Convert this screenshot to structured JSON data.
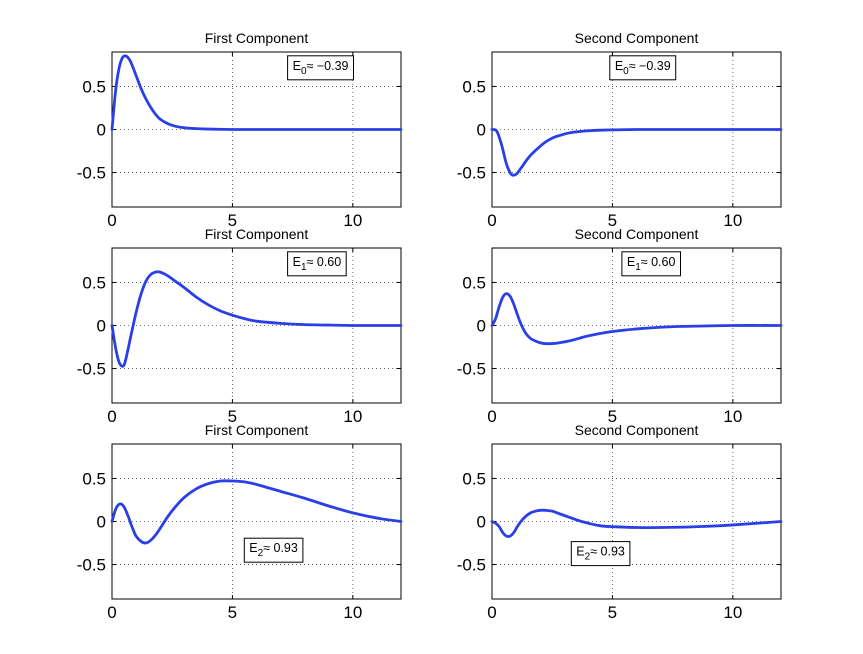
{
  "chart_data": [
    {
      "type": "line",
      "title": "First Component",
      "xlim": [
        0,
        12
      ],
      "ylim": [
        -0.9,
        0.9
      ],
      "xticks": [
        0,
        5,
        10
      ],
      "xtick_labels": [
        "0",
        "5",
        "10"
      ],
      "yticks": [
        0.5,
        0,
        -0.5
      ],
      "ytick_labels": [
        "0.5",
        "0",
        "-0.5"
      ],
      "grid": true,
      "annotation": {
        "base": "E",
        "sub": "0",
        "text": "≈ −0.39",
        "at": [
          7.5,
          0.74
        ]
      },
      "series": [
        {
          "color": "#2a3fe6",
          "x": [
            0,
            0.15,
            0.3,
            0.45,
            0.6,
            0.75,
            0.9,
            1.05,
            1.2,
            1.4,
            1.6,
            1.8,
            2.0,
            2.3,
            2.6,
            3.0,
            3.5,
            4.0,
            5.0,
            6.0,
            8.0,
            10.0,
            12.0
          ],
          "y": [
            0,
            0.45,
            0.72,
            0.84,
            0.85,
            0.8,
            0.7,
            0.59,
            0.48,
            0.36,
            0.26,
            0.18,
            0.12,
            0.07,
            0.04,
            0.02,
            0.01,
            0.005,
            0.0,
            0.0,
            0.0,
            0.0,
            0.0
          ]
        }
      ]
    },
    {
      "type": "line",
      "title": "Second Component",
      "xlim": [
        0,
        12
      ],
      "ylim": [
        -0.9,
        0.9
      ],
      "xticks": [
        0,
        5,
        10
      ],
      "xtick_labels": [
        "0",
        "5",
        "10"
      ],
      "yticks": [
        0.5,
        0,
        -0.5
      ],
      "ytick_labels": [
        "0.5",
        "0",
        "-0.5"
      ],
      "grid": true,
      "annotation": {
        "base": "E",
        "sub": "0",
        "text": "≈ −0.39",
        "at": [
          5.1,
          0.74
        ]
      },
      "series": [
        {
          "color": "#2a3fe6",
          "x": [
            0,
            0.2,
            0.4,
            0.6,
            0.8,
            1.0,
            1.2,
            1.4,
            1.6,
            1.9,
            2.2,
            2.5,
            2.8,
            3.2,
            3.6,
            4.0,
            4.5,
            5.0,
            6.0,
            7.0,
            8.0,
            10.0,
            12.0
          ],
          "y": [
            0,
            -0.02,
            -0.18,
            -0.4,
            -0.52,
            -0.52,
            -0.45,
            -0.37,
            -0.3,
            -0.22,
            -0.15,
            -0.1,
            -0.07,
            -0.04,
            -0.025,
            -0.015,
            -0.008,
            -0.004,
            0.0,
            0.0,
            0.0,
            0.0,
            0.0
          ]
        }
      ]
    },
    {
      "type": "line",
      "title": "First Component",
      "xlim": [
        0,
        12
      ],
      "ylim": [
        -0.9,
        0.9
      ],
      "xticks": [
        0,
        5,
        10
      ],
      "xtick_labels": [
        "0",
        "5",
        "10"
      ],
      "yticks": [
        0.5,
        0,
        -0.5
      ],
      "ytick_labels": [
        "0.5",
        "0",
        "-0.5"
      ],
      "grid": true,
      "annotation": {
        "base": "E",
        "sub": "1",
        "text": "≈ 0.60",
        "at": [
          7.5,
          0.74
        ]
      },
      "series": [
        {
          "color": "#2a3fe6",
          "x": [
            0,
            0.1,
            0.2,
            0.3,
            0.4,
            0.5,
            0.6,
            0.8,
            1.0,
            1.2,
            1.4,
            1.6,
            1.8,
            2.0,
            2.3,
            2.6,
            3.0,
            3.5,
            4.0,
            4.5,
            5.0,
            5.5,
            6.0,
            7.0,
            8.0,
            9.0,
            10.0,
            11.0,
            12.0
          ],
          "y": [
            0,
            -0.18,
            -0.33,
            -0.43,
            -0.47,
            -0.46,
            -0.36,
            -0.1,
            0.15,
            0.36,
            0.51,
            0.59,
            0.62,
            0.62,
            0.58,
            0.52,
            0.44,
            0.33,
            0.24,
            0.17,
            0.12,
            0.08,
            0.05,
            0.025,
            0.01,
            0.005,
            0.0,
            0.0,
            0.0
          ]
        }
      ]
    },
    {
      "type": "line",
      "title": "Second Component",
      "xlim": [
        0,
        12
      ],
      "ylim": [
        -0.9,
        0.9
      ],
      "xticks": [
        0,
        5,
        10
      ],
      "xtick_labels": [
        "0",
        "5",
        "10"
      ],
      "yticks": [
        0.5,
        0,
        -0.5
      ],
      "ytick_labels": [
        "0.5",
        "0",
        "-0.5"
      ],
      "grid": true,
      "annotation": {
        "base": "E",
        "sub": "1",
        "text": "≈ 0.60",
        "at": [
          5.6,
          0.74
        ]
      },
      "series": [
        {
          "color": "#2a3fe6",
          "x": [
            0,
            0.15,
            0.3,
            0.45,
            0.6,
            0.75,
            0.9,
            1.05,
            1.2,
            1.4,
            1.6,
            1.8,
            2.0,
            2.2,
            2.5,
            2.8,
            3.2,
            3.6,
            4.0,
            5.0,
            6.0,
            7.0,
            8.0,
            10.0,
            12.0
          ],
          "y": [
            0,
            0.08,
            0.22,
            0.33,
            0.37,
            0.34,
            0.25,
            0.13,
            0.02,
            -0.09,
            -0.15,
            -0.18,
            -0.2,
            -0.21,
            -0.21,
            -0.2,
            -0.18,
            -0.15,
            -0.12,
            -0.07,
            -0.04,
            -0.02,
            -0.01,
            0.0,
            0.0
          ]
        }
      ]
    },
    {
      "type": "line",
      "title": "First Component",
      "xlim": [
        0,
        12
      ],
      "ylim": [
        -0.9,
        0.9
      ],
      "xticks": [
        0,
        5,
        10
      ],
      "xtick_labels": [
        "0",
        "5",
        "10"
      ],
      "yticks": [
        0.5,
        0,
        -0.5
      ],
      "ytick_labels": [
        "0.5",
        "0",
        "-0.5"
      ],
      "grid": true,
      "annotation": {
        "base": "E",
        "sub": "2",
        "text": "≈ 0.93",
        "at": [
          5.7,
          -0.31
        ]
      },
      "series": [
        {
          "color": "#2a3fe6",
          "x": [
            0,
            0.1,
            0.2,
            0.3,
            0.4,
            0.5,
            0.6,
            0.7,
            0.8,
            0.9,
            1.0,
            1.2,
            1.4,
            1.6,
            1.8,
            2.0,
            2.3,
            2.6,
            3.0,
            3.5,
            4.0,
            4.5,
            5.0,
            5.5,
            6.0,
            7.0,
            8.0,
            9.0,
            10.0,
            11.0,
            12.0
          ],
          "y": [
            0,
            0.1,
            0.17,
            0.2,
            0.2,
            0.17,
            0.11,
            0.04,
            -0.04,
            -0.11,
            -0.17,
            -0.23,
            -0.25,
            -0.22,
            -0.16,
            -0.08,
            0.05,
            0.16,
            0.28,
            0.38,
            0.44,
            0.47,
            0.47,
            0.46,
            0.43,
            0.35,
            0.27,
            0.18,
            0.1,
            0.04,
            0.0
          ]
        }
      ]
    },
    {
      "type": "line",
      "title": "Second Component",
      "xlim": [
        0,
        12
      ],
      "ylim": [
        -0.9,
        0.9
      ],
      "xticks": [
        0,
        5,
        10
      ],
      "xtick_labels": [
        "0",
        "5",
        "10"
      ],
      "yticks": [
        0.5,
        0,
        -0.5
      ],
      "ytick_labels": [
        "0.5",
        "0",
        "-0.5"
      ],
      "grid": true,
      "annotation": {
        "base": "E",
        "sub": "2",
        "text": "≈ 0.93",
        "at": [
          3.5,
          -0.35
        ]
      },
      "series": [
        {
          "color": "#2a3fe6",
          "x": [
            0,
            0.15,
            0.3,
            0.45,
            0.6,
            0.75,
            0.9,
            1.05,
            1.2,
            1.4,
            1.6,
            1.8,
            2.0,
            2.2,
            2.5,
            2.8,
            3.2,
            3.6,
            4.0,
            4.5,
            5.0,
            6.0,
            7.0,
            8.0,
            9.0,
            10.0,
            11.0,
            12.0
          ],
          "y": [
            0,
            -0.02,
            -0.06,
            -0.13,
            -0.17,
            -0.17,
            -0.13,
            -0.06,
            0.0,
            0.06,
            0.1,
            0.12,
            0.13,
            0.13,
            0.12,
            0.09,
            0.05,
            0.01,
            -0.02,
            -0.05,
            -0.06,
            -0.07,
            -0.07,
            -0.065,
            -0.055,
            -0.04,
            -0.02,
            0.0
          ]
        }
      ]
    }
  ]
}
